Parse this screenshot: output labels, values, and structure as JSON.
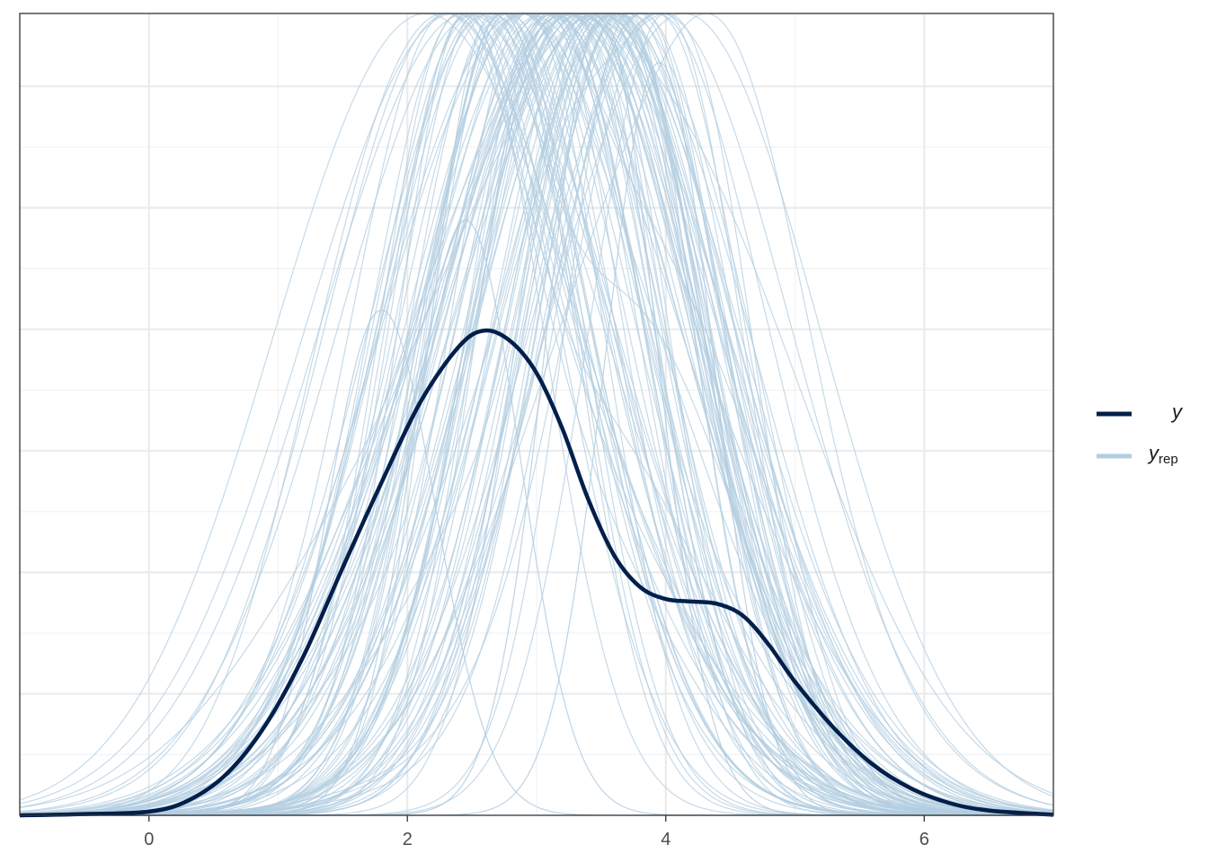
{
  "chart_data": {
    "type": "line",
    "title": "",
    "xlabel": "",
    "ylabel": "",
    "xlim": [
      -1,
      7
    ],
    "ylim": [
      0,
      0.33
    ],
    "x_ticks": [
      0,
      2,
      4,
      6
    ],
    "x_tick_labels": [
      "0",
      "2",
      "4",
      "6"
    ],
    "y_tick_labels": [],
    "grid": true,
    "legend_position": "right",
    "colors": {
      "y": "#011f4b",
      "yrep": "#b3cde0",
      "grid": "#ebebeb",
      "border": "#333333"
    },
    "legend": [
      {
        "key": "y",
        "label": "y",
        "subscript": ""
      },
      {
        "key": "yrep",
        "label": "y",
        "subscript": "rep"
      }
    ],
    "series": [
      {
        "name": "y",
        "x": [
          -1.0,
          -0.5,
          0.0,
          0.3,
          0.6,
          0.9,
          1.2,
          1.5,
          1.8,
          2.1,
          2.4,
          2.6,
          2.8,
          3.0,
          3.2,
          3.4,
          3.6,
          3.8,
          4.0,
          4.2,
          4.4,
          4.6,
          4.8,
          5.0,
          5.3,
          5.6,
          5.9,
          6.2,
          6.5,
          7.0
        ],
        "y": [
          0.0,
          0.0005,
          0.0015,
          0.006,
          0.017,
          0.037,
          0.066,
          0.102,
          0.137,
          0.17,
          0.193,
          0.1995,
          0.195,
          0.182,
          0.159,
          0.13,
          0.107,
          0.094,
          0.089,
          0.088,
          0.087,
          0.082,
          0.07,
          0.055,
          0.036,
          0.021,
          0.011,
          0.005,
          0.002,
          0.0002
        ]
      }
    ],
    "replicates": {
      "name": "y_rep",
      "count": 100,
      "center_range": [
        2.3,
        4.0
      ],
      "sd_range": [
        0.5,
        1.2
      ],
      "peak_range": [
        0.13,
        0.33
      ],
      "tallest_peaks": [
        {
          "x": 3.5,
          "y": 0.329
        },
        {
          "x": 3.95,
          "y": 0.31
        },
        {
          "x": 2.45,
          "y": 0.245
        },
        {
          "x": 1.8,
          "y": 0.208
        }
      ]
    }
  }
}
